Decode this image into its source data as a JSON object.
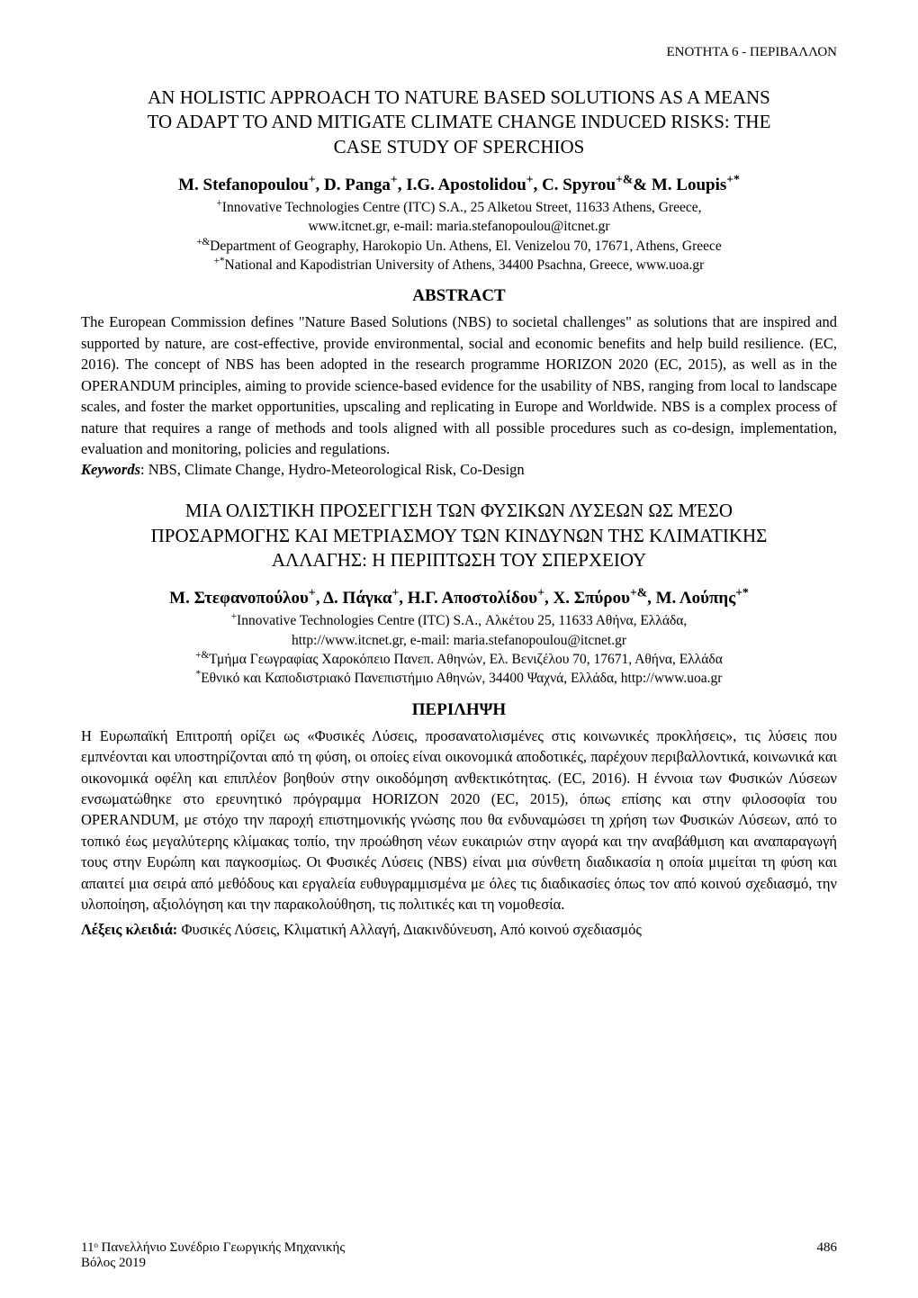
{
  "header": {
    "section_label": "ΕΝΟΤΗΤΑ 6 - ΠΕΡΙΒΑΛΛΟΝ"
  },
  "english": {
    "title_line1": "AN HOLISTIC APPROACH TO NATURE BASED SOLUTIONS AS A MEANS",
    "title_line2": "TO ADAPT TO AND MITIGATE CLIMATE CHANGE INDUCED RISKS: THE",
    "title_line3": "CASE STUDY OF SPERCHIOS",
    "authors_html": "M. Stefanopoulou<sup>+</sup>, D. Panga<sup>+</sup>, I.G. Apostolidou<sup>+</sup>, C. Spyrou<sup>+&</sup>& M. Loupis<sup>+*</sup>",
    "affil1_line1": "<sup>+</sup>Innovative Technologies Centre (ITC) S.A., 25 Alketou Street, 11633 Athens, Greece,",
    "affil1_line2": "www.itcnet.gr,  e-mail: maria.stefanopoulou@itcnet.gr",
    "affil2": "<sup>+&</sup>Department of Geography, Harokopio Un. Athens, El. Venizelou 70, 17671, Athens, Greece",
    "affil3": "<sup>+*</sup>National and Kapodistrian University of Athens, 34400 Psachna, Greece, www.uoa.gr",
    "abstract_head": "ABSTRACT",
    "abstract_body": "The European Commission defines \"Nature Based Solutions (NBS) to societal challenges\" as solutions that are inspired and supported by nature, are cost-effective, provide environmental, social and economic benefits and help build resilience. (EC, 2016). The concept of NBS has been adopted in the research programme HORIZON 2020 (EC, 2015), as well as in the OPERANDUM principles, aiming to provide science-based evidence for the usability of NBS, ranging from local to landscape scales, and foster the market opportunities, upscaling and replicating in Europe and Worldwide. NBS is a complex process of nature that requires a range of methods and tools aligned with all possible procedures such as co-design, implementation, evaluation and monitoring, policies and regulations.",
    "keywords_label": "Keywords",
    "keywords_text": ": NBS, Climate Change, Hydro-Meteorological Risk, Co-Design"
  },
  "greek": {
    "title_line1": "ΜΙΑ ΟΛΙΣΤΙΚΗ ΠΡΟΣΕΓΓΙΣΗ ΤΩΝ ΦΥΣΙΚΩΝ ΛΥΣΕΩΝ ΩΣ ΜΈΣΟ",
    "title_line2": "ΠΡΟΣΑΡΜΟΓΗΣ ΚΑΙ ΜΕΤΡΙΑΣΜΟΥ ΤΩΝ ΚΙΝΔΥΝΩΝ ΤΗΣ ΚΛΙΜΑΤΙΚΗΣ",
    "title_line3": "ΑΛΛΑΓΗΣ: Η ΠΕΡΙΠΤΩΣΗ ΤΟΥ ΣΠΕΡΧΕΙΟΥ",
    "authors_html": "Μ. Στεφανοπούλου<sup>+</sup>, Δ. Πάγκα<sup>+</sup>, Η.Γ. Αποστολίδου<sup>+</sup>, Χ. Σπύρου<sup>+&</sup>, Μ. Λούπης<sup>+*</sup>",
    "affil1_line1": "<sup>+</sup>Innovative Technologies Centre (ITC) S.A., Αλκέτου 25, 11633 Αθήνα, Ελλάδα,",
    "affil1_line2": "http://www.itcnet.gr, e-mail: maria.stefanopoulou@itcnet.gr",
    "affil2": "<sup>+&</sup>Τμήμα Γεωγραφίας Χαροκόπειο Πανεπ. Αθηνών, Ελ. Βενιζέλου 70, 17671, Αθήνα, Ελλάδα",
    "affil3": "<sup>*</sup>Εθνικό και Καποδιστριακό Πανεπιστήμιο Αθηνών, 34400 Ψαχνά, Ελλάδα, http://www.uoa.gr",
    "abstract_head": "ΠΕΡΙΛΗΨΗ",
    "abstract_body": "Η Ευρωπαϊκή Επιτροπή ορίζει ως «Φυσικές Λύσεις, προσανατολισμένες στις κοινωνικές προκλήσεις», τις λύσεις που εμπνέονται και υποστηρίζονται από τη φύση, οι οποίες είναι οικονομικά αποδοτικές, παρέχουν περιβαλλοντικά, κοινωνικά και οικονομικά οφέλη και επιπλέον βοηθούν στην οικοδόμηση ανθεκτικότητας. (EC, 2016). Η έννοια των Φυσικών Λύσεων ενσωματώθηκε στο ερευνητικό πρόγραμμα HORIZON 2020 (EC, 2015), όπως επίσης και στην φιλοσοφία του OPERANDUM, με στόχο την παροχή επιστημονικής γνώσης που θα ενδυναμώσει τη χρήση των Φυσικών Λύσεων, από το τοπικό έως μεγαλύτερης κλίμακας τοπίο, την προώθηση νέων ευκαιριών στην αγορά και την αναβάθμιση και αναπαραγωγή τους στην Ευρώπη και παγκοσμίως. Οι Φυσικές Λύσεις (NBS) είναι μια σύνθετη διαδικασία η οποία μιμείται τη φύση και απαιτεί μια σειρά από μεθόδους και εργαλεία ευθυγραμμισμένα με όλες τις διαδικασίες όπως τον από κοινού σχεδιασμό, την υλοποίηση, αξιολόγηση και την παρακολούθηση, τις πολιτικές και τη νομοθεσία.",
    "keywords_label": "Λέξεις κλειδιά:",
    "keywords_text": " Φυσικές Λύσεις, Κλιματική Αλλαγή, Διακινδύνευση, Από κοινού σχεδιασμός"
  },
  "footer": {
    "line1": "11ᵒ Πανελλήνιο Συνέδριο Γεωργικής Μηχανικής",
    "line2": "Βόλος 2019",
    "page_number": "486"
  }
}
